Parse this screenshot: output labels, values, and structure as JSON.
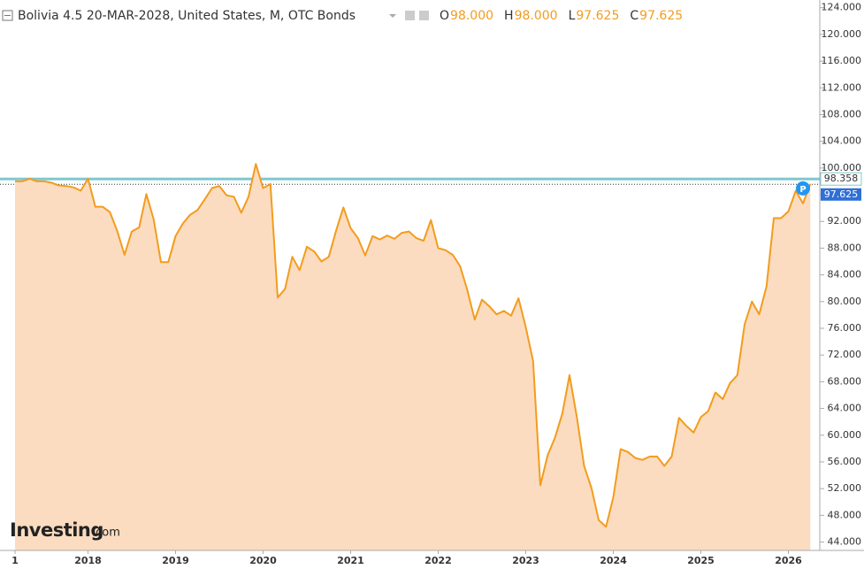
{
  "chart_data": {
    "type": "area",
    "title": "Bolivia 4.5 20-MAR-2028, United States, M, OTC Bonds",
    "ohlc": [
      {
        "label": "O",
        "value": "98.000"
      },
      {
        "label": "H",
        "value": "98.000"
      },
      {
        "label": "L",
        "value": "97.625"
      },
      {
        "label": "C",
        "value": "97.625"
      }
    ],
    "categories": [
      "1",
      null,
      null,
      null,
      null,
      null,
      null,
      null,
      null,
      null,
      "2018",
      null,
      null,
      null,
      null,
      null,
      null,
      null,
      null,
      null,
      null,
      null,
      "2019",
      null,
      null,
      null,
      null,
      null,
      null,
      null,
      null,
      null,
      null,
      null,
      "2020",
      null,
      null,
      null,
      null,
      null,
      null,
      null,
      null,
      null,
      null,
      null,
      "2021",
      null,
      null,
      null,
      null,
      null,
      null,
      null,
      null,
      null,
      null,
      null,
      "2022",
      null,
      null,
      null,
      null,
      null,
      null,
      null,
      null,
      null,
      null,
      null,
      "2023",
      null,
      null,
      null,
      null,
      null,
      null,
      null,
      null,
      null,
      null,
      null,
      "2024",
      null,
      null,
      null,
      null,
      null,
      null,
      null,
      null,
      null,
      null,
      null,
      "2025",
      null,
      null,
      null,
      null,
      null,
      null,
      null,
      null,
      null,
      null,
      null,
      "2026",
      null,
      null,
      null
    ],
    "series": [
      {
        "color": "#f39c1d",
        "fill": "#fbdcc0",
        "values": [
          98.0,
          98.0,
          98.4,
          98.0,
          98.0,
          97.8,
          97.4,
          97.3,
          97.1,
          96.6,
          98.4,
          94.2,
          94.2,
          93.4,
          90.6,
          87.0,
          90.5,
          91.1,
          96.1,
          92.3,
          85.9,
          85.9,
          89.8,
          91.7,
          93.0,
          93.7,
          95.3,
          97.0,
          97.3,
          95.9,
          95.7,
          93.3,
          95.7,
          100.6,
          97.0,
          97.6,
          80.6,
          81.9,
          86.7,
          84.7,
          88.2,
          87.5,
          86.0,
          86.7,
          90.6,
          94.1,
          91.0,
          89.5,
          86.9,
          89.8,
          89.3,
          89.9,
          89.4,
          90.3,
          90.5,
          89.5,
          89.1,
          92.2,
          88.0,
          87.7,
          87.0,
          85.3,
          81.7,
          77.3,
          80.3,
          79.3,
          78.1,
          78.6,
          77.9,
          80.5,
          76.2,
          71.1,
          52.5,
          57.0,
          59.6,
          63.2,
          69.0,
          62.7,
          55.4,
          52.1,
          47.3,
          46.3,
          50.7,
          57.9,
          57.5,
          56.6,
          56.3,
          56.8,
          56.8,
          55.4,
          56.8,
          62.6,
          61.4,
          60.4,
          62.7,
          63.6,
          66.4,
          65.4,
          67.8,
          69.0,
          76.6,
          80.0,
          78.1,
          82.3,
          92.5,
          92.5,
          93.5,
          96.6,
          94.7,
          97.625
        ]
      }
    ],
    "price_lines": [
      {
        "value": 98.358,
        "color": "#7fc8cf",
        "style": "solid"
      },
      {
        "value": 97.625,
        "color": "#2f6fd6",
        "style": "dotted"
      }
    ],
    "marker": "P",
    "logo": {
      "main": "Investing",
      "suffix": ".com"
    },
    "ylim": [
      42.75,
      125.15
    ],
    "yticks": [
      {
        "value": 44,
        "label": "44.000"
      },
      {
        "value": 48,
        "label": "48.000"
      },
      {
        "value": 52,
        "label": "52.000"
      },
      {
        "value": 56,
        "label": "56.000"
      },
      {
        "value": 60,
        "label": "60.000"
      },
      {
        "value": 64,
        "label": "64.000"
      },
      {
        "value": 68,
        "label": "68.000"
      },
      {
        "value": 72,
        "label": "72.000"
      },
      {
        "value": 76,
        "label": "76.000"
      },
      {
        "value": 80,
        "label": "80.000"
      },
      {
        "value": 84,
        "label": "84.000"
      },
      {
        "value": 88,
        "label": "88.000"
      },
      {
        "value": 92,
        "label": "92.000"
      },
      {
        "value": 96,
        "label": "96.000"
      },
      {
        "value": 100,
        "label": "100.000"
      },
      {
        "value": 104,
        "label": "104.000"
      },
      {
        "value": 108,
        "label": "108.000"
      },
      {
        "value": 112,
        "label": "112.000"
      },
      {
        "value": 116,
        "label": "116.000"
      },
      {
        "value": 120,
        "label": "120.000"
      },
      {
        "value": 124,
        "label": "124.000"
      }
    ]
  }
}
